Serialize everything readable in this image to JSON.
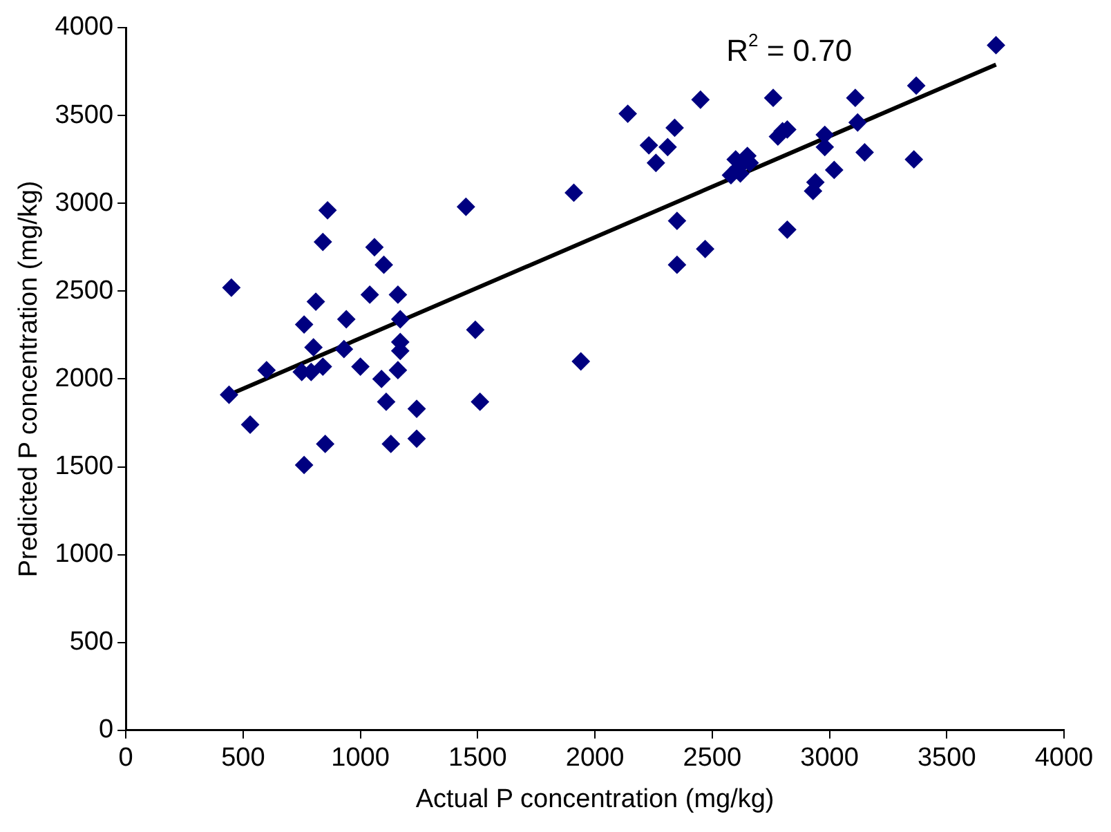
{
  "chart_data": {
    "type": "scatter",
    "xlabel": "Actual P concentration (mg/kg)",
    "ylabel": "Predicted P concentration (mg/kg)",
    "xlim": [
      0,
      4000
    ],
    "xticks": [
      0,
      500,
      1000,
      1500,
      2000,
      2500,
      3000,
      3500,
      4000
    ],
    "ylim": [
      0,
      4000
    ],
    "yticks": [
      0,
      500,
      1000,
      1500,
      2000,
      2500,
      3000,
      3500,
      4000
    ],
    "grid": false,
    "legend": false,
    "marker": "diamond",
    "annotations": [
      "R$^{2}$ = 0.70"
    ],
    "series": [
      {
        "color": "#000080",
        "x": [
          440,
          450,
          530,
          600,
          750,
          760,
          760,
          790,
          800,
          810,
          840,
          840,
          850,
          860,
          930,
          940,
          1000,
          1040,
          1060,
          1090,
          1100,
          1110,
          1130,
          1160,
          1160,
          1170,
          1170,
          1170,
          1240,
          1240,
          1450,
          1490,
          1510,
          1910,
          1940,
          2140,
          2230,
          2260,
          2310,
          2340,
          2350,
          2350,
          2450,
          2470,
          2580,
          2600,
          2610,
          2620,
          2650,
          2660,
          2760,
          2780,
          2800,
          2820,
          2820,
          2930,
          2940,
          2980,
          2980,
          3020,
          3110,
          3120,
          3150,
          3360,
          3370,
          3710
        ],
        "values": [
          1910,
          2520,
          1740,
          2050,
          2040,
          2310,
          1510,
          2040,
          2180,
          2440,
          2070,
          2780,
          1630,
          2960,
          2170,
          2340,
          2070,
          2480,
          2750,
          2000,
          2650,
          1870,
          1630,
          2480,
          2050,
          2340,
          2210,
          2160,
          1830,
          1660,
          2980,
          2280,
          1870,
          3060,
          2100,
          3510,
          3330,
          3230,
          3320,
          3430,
          2650,
          2900,
          3590,
          2740,
          3160,
          3250,
          3200,
          3170,
          3270,
          3230,
          3600,
          3380,
          3410,
          3420,
          2850,
          3070,
          3120,
          3390,
          3320,
          3190,
          3600,
          3460,
          3290,
          3250,
          3670,
          3900
        ]
      },
      {
        "type": "line",
        "color": "#000000",
        "marker": "none",
        "x": [
          440,
          3710
        ],
        "values": [
          1910,
          3790
        ]
      }
    ]
  }
}
